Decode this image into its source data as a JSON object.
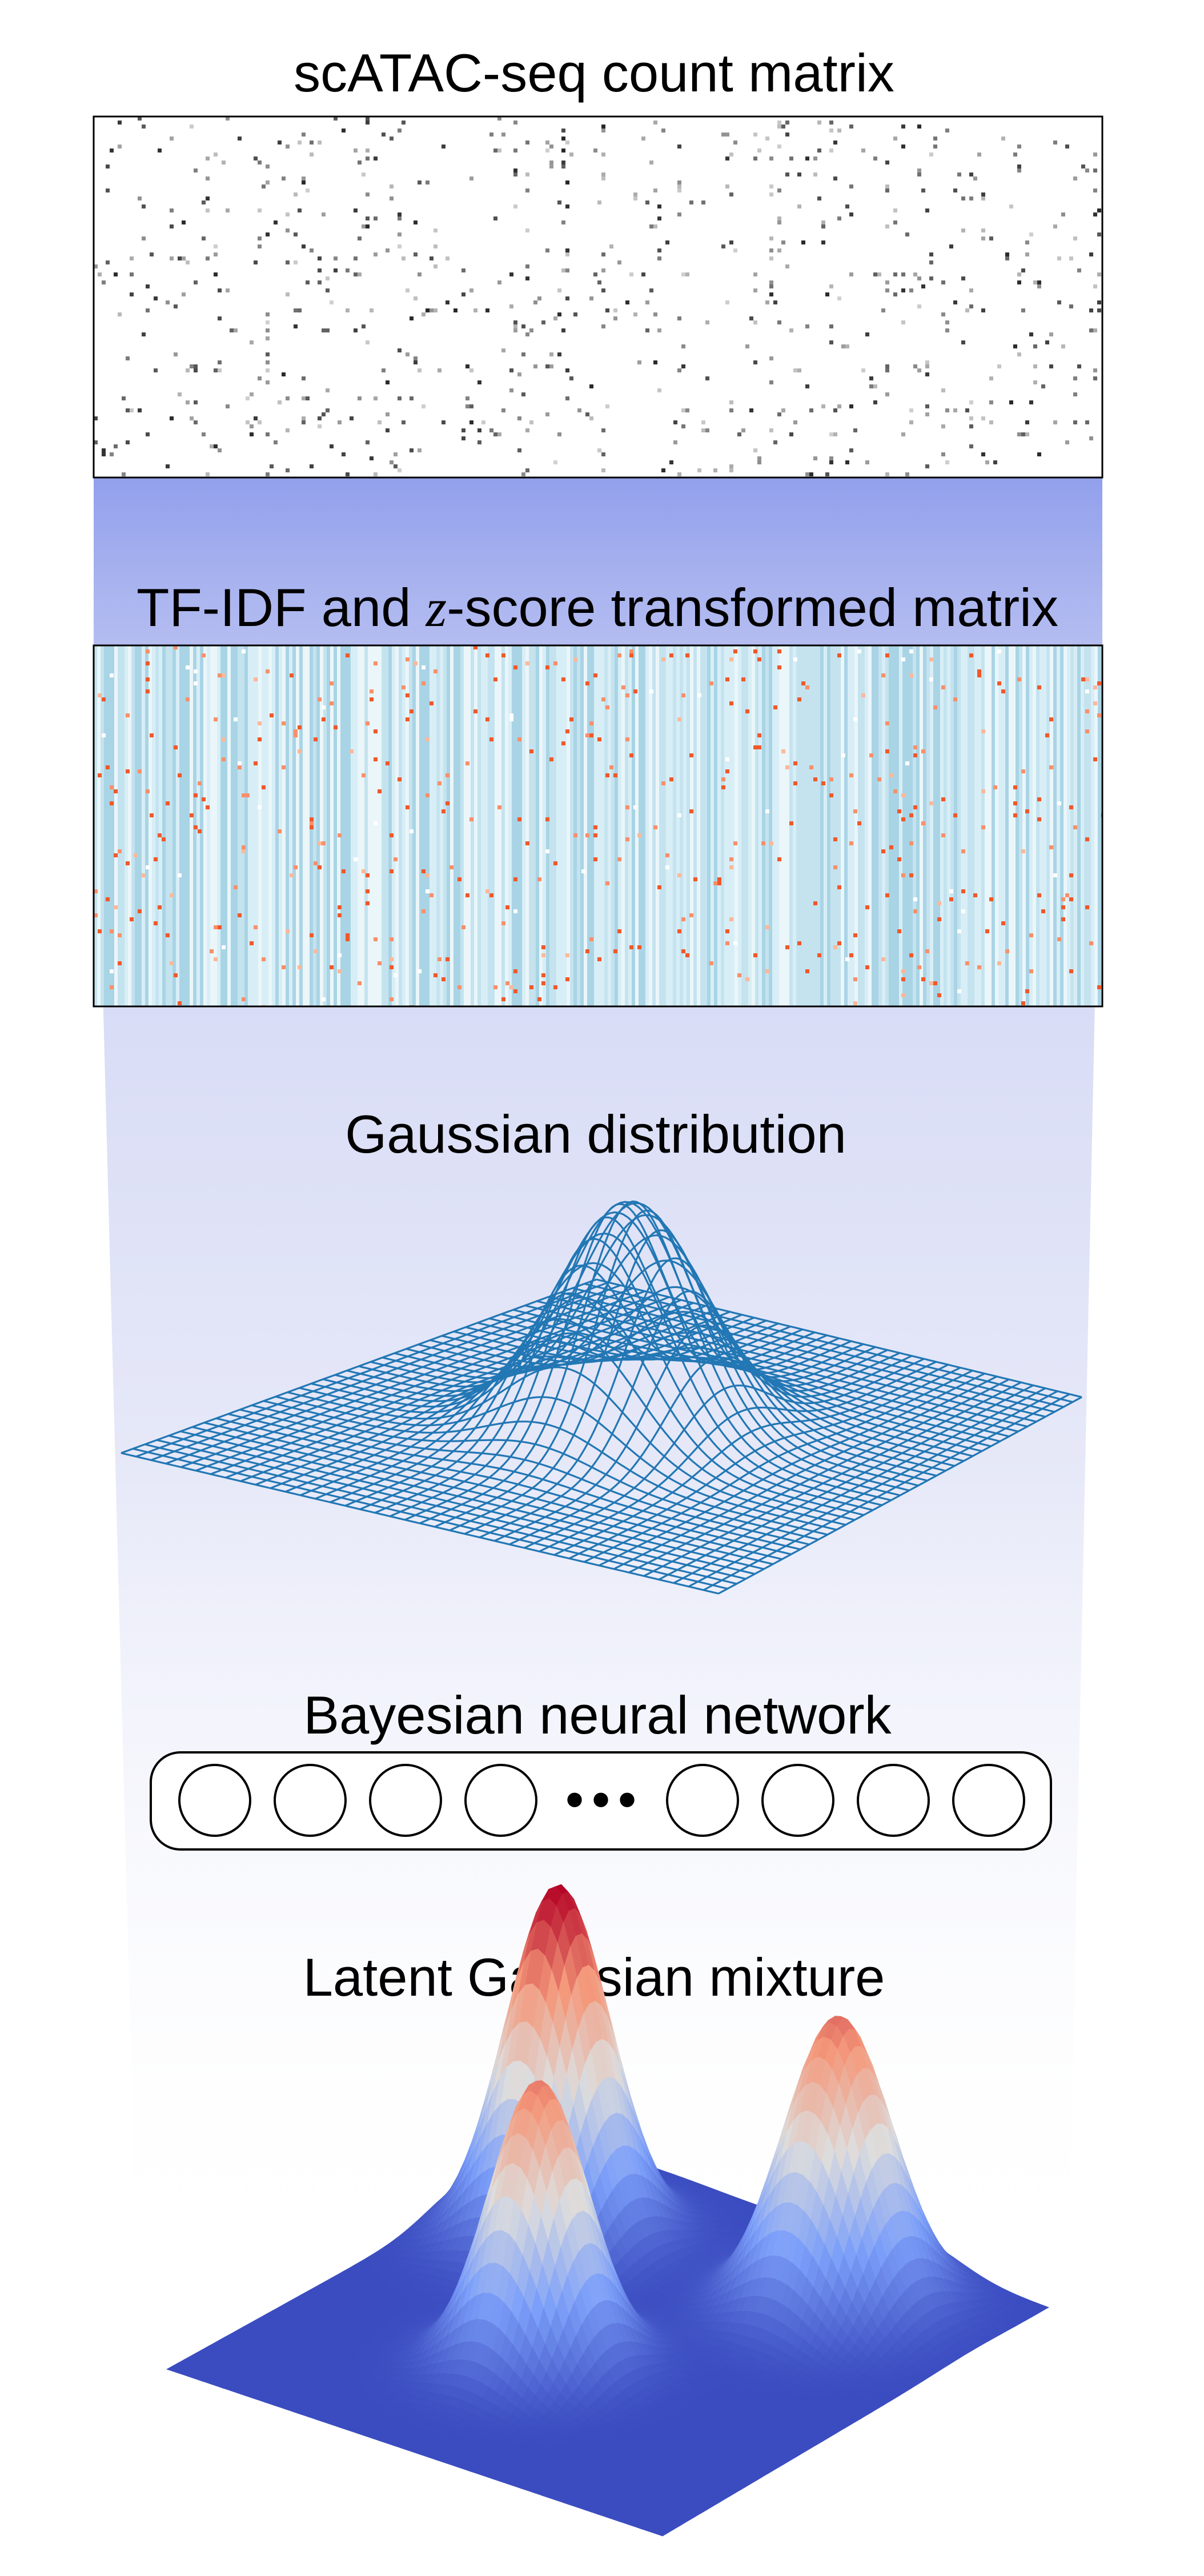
{
  "steps": {
    "count_matrix": {
      "title": "scATAC-seq count matrix"
    },
    "transformed_matrix": {
      "title_pre": "TF-IDF and ",
      "title_var": "z",
      "title_post": "-score transformed matrix"
    },
    "gaussian": {
      "title": "Gaussian distribution"
    },
    "bnn": {
      "title": "Bayesian neural network",
      "ellipsis": "•••"
    },
    "mixture": {
      "title": "Latent Gaussian mixture"
    }
  },
  "colors": {
    "funnel": "#9aa8ec",
    "matrix_border": "#000000",
    "heatmap_base": "#dcf0f7",
    "heatmap_stripe": "#a9d4e5",
    "heatmap_hot": "#f0582a",
    "wireframe": "#2277b4",
    "mixture_low": "#3b4cc0",
    "mixture_mid": "#dddddd",
    "mixture_high": "#b40426"
  }
}
